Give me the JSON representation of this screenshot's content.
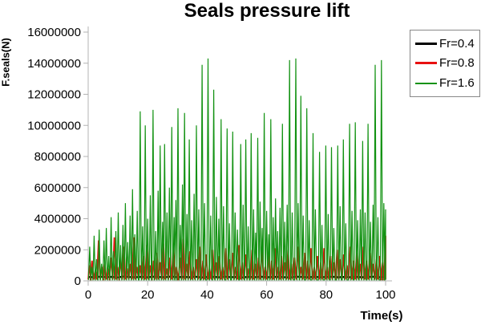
{
  "chart_data": {
    "type": "line",
    "title": "Seals pressure lift",
    "xlabel": "Time(s)",
    "ylabel": "F.seals(N)",
    "xlim": [
      0,
      100
    ],
    "ylim": [
      0,
      16000000
    ],
    "x_ticks": [
      0,
      20,
      40,
      60,
      80,
      100
    ],
    "y_ticks": [
      0,
      2000000,
      4000000,
      6000000,
      8000000,
      10000000,
      12000000,
      14000000,
      16000000
    ],
    "grid": false,
    "legend_position": "top-right",
    "axis_color": "#b3b3b3",
    "series": [
      {
        "name": "Fr=0.4",
        "color": "#000000",
        "kind": "flat-noise",
        "points": [
          [
            0,
            250000
          ],
          [
            2,
            230000
          ],
          [
            4,
            270000
          ],
          [
            6,
            240000
          ],
          [
            8,
            260000
          ],
          [
            10,
            220000
          ],
          [
            12,
            280000
          ],
          [
            14,
            250000
          ],
          [
            16,
            240000
          ],
          [
            18,
            260000
          ],
          [
            20,
            230000
          ],
          [
            22,
            270000
          ],
          [
            24,
            250000
          ],
          [
            26,
            240000
          ],
          [
            28,
            280000
          ],
          [
            30,
            230000
          ],
          [
            32,
            260000
          ],
          [
            34,
            240000
          ],
          [
            36,
            270000
          ],
          [
            38,
            220000
          ],
          [
            40,
            250000
          ],
          [
            42,
            260000
          ],
          [
            44,
            230000
          ],
          [
            46,
            270000
          ],
          [
            48,
            240000
          ],
          [
            50,
            250000
          ],
          [
            52,
            220000
          ],
          [
            54,
            260000
          ],
          [
            56,
            240000
          ],
          [
            58,
            270000
          ],
          [
            60,
            230000
          ],
          [
            62,
            250000
          ],
          [
            64,
            260000
          ],
          [
            66,
            240000
          ],
          [
            68,
            220000
          ],
          [
            70,
            270000
          ],
          [
            72,
            250000
          ],
          [
            74,
            230000
          ],
          [
            76,
            260000
          ],
          [
            78,
            240000
          ],
          [
            80,
            250000
          ],
          [
            82,
            270000
          ],
          [
            84,
            230000
          ],
          [
            86,
            250000
          ],
          [
            88,
            240000
          ],
          [
            90,
            260000
          ],
          [
            92,
            230000
          ],
          [
            94,
            250000
          ],
          [
            96,
            270000
          ],
          [
            98,
            240000
          ],
          [
            100,
            250000
          ]
        ]
      },
      {
        "name": "Fr=0.8",
        "color": "#e81010",
        "kind": "spikes",
        "baseline": 90000,
        "spike_halfwidth": 0.55,
        "peaks": [
          [
            0.4,
            1000000
          ],
          [
            1.3,
            1300000
          ],
          [
            2.4,
            700000
          ],
          [
            3.5,
            2600000
          ],
          [
            4.6,
            900000
          ],
          [
            5.6,
            1100000
          ],
          [
            6.7,
            800000
          ],
          [
            7.7,
            1500000
          ],
          [
            8.8,
            2800000
          ],
          [
            9.9,
            900000
          ],
          [
            10.9,
            1400000
          ],
          [
            12.0,
            2200000
          ],
          [
            13.1,
            800000
          ],
          [
            14.2,
            1100000
          ],
          [
            15.3,
            2800000
          ],
          [
            16.4,
            900000
          ],
          [
            17.5,
            1000000
          ],
          [
            18.6,
            1600000
          ],
          [
            19.7,
            2300000
          ],
          [
            20.8,
            1000000
          ],
          [
            22.0,
            1300000
          ],
          [
            23.1,
            1800000
          ],
          [
            24.2,
            1200000
          ],
          [
            25.3,
            2400000
          ],
          [
            26.4,
            800000
          ],
          [
            27.5,
            1500000
          ],
          [
            28.6,
            2100000
          ],
          [
            29.7,
            900000
          ],
          [
            30.9,
            1500000
          ],
          [
            32.0,
            2700000
          ],
          [
            33.1,
            1100000
          ],
          [
            34.2,
            1900000
          ],
          [
            35.3,
            900000
          ],
          [
            36.4,
            1400000
          ],
          [
            37.5,
            2200000
          ],
          [
            38.6,
            1300000
          ],
          [
            39.7,
            1700000
          ],
          [
            40.8,
            800000
          ],
          [
            41.9,
            2000000
          ],
          [
            43.0,
            1200000
          ],
          [
            44.1,
            1600000
          ],
          [
            45.2,
            900000
          ],
          [
            46.3,
            2100000
          ],
          [
            47.4,
            1400000
          ],
          [
            48.5,
            1800000
          ],
          [
            49.6,
            900000
          ],
          [
            50.7,
            2300000
          ],
          [
            51.8,
            1200000
          ],
          [
            52.9,
            1700000
          ],
          [
            54.0,
            800000
          ],
          [
            55.1,
            2000000
          ],
          [
            56.2,
            1100000
          ],
          [
            57.3,
            1500000
          ],
          [
            58.4,
            2200000
          ],
          [
            59.5,
            900000
          ],
          [
            60.6,
            1800000
          ],
          [
            61.7,
            1300000
          ],
          [
            62.8,
            2100000
          ],
          [
            63.9,
            900000
          ],
          [
            65.0,
            1600000
          ],
          [
            66.1,
            1200000
          ],
          [
            67.2,
            2000000
          ],
          [
            68.3,
            1100000
          ],
          [
            69.4,
            1500000
          ],
          [
            70.5,
            2200000
          ],
          [
            71.6,
            900000
          ],
          [
            72.7,
            1800000
          ],
          [
            73.8,
            1300000
          ],
          [
            74.9,
            2100000
          ],
          [
            76.0,
            900000
          ],
          [
            77.1,
            1600000
          ],
          [
            78.2,
            1200000
          ],
          [
            79.3,
            2100000
          ],
          [
            80.4,
            900000
          ],
          [
            81.5,
            1600000
          ],
          [
            82.6,
            1200000
          ],
          [
            83.7,
            2000000
          ],
          [
            84.8,
            1400000
          ],
          [
            85.9,
            1700000
          ],
          [
            87.0,
            1000000
          ],
          [
            88.1,
            2200000
          ],
          [
            89.2,
            1300000
          ],
          [
            90.3,
            1800000
          ],
          [
            91.4,
            1100000
          ],
          [
            92.5,
            2200000
          ],
          [
            93.6,
            1300000
          ],
          [
            94.7,
            1800000
          ],
          [
            95.8,
            1100000
          ],
          [
            96.9,
            1400000
          ],
          [
            98.0,
            1600000
          ],
          [
            99.0,
            1200000
          ],
          [
            100,
            2900000
          ]
        ]
      },
      {
        "name": "Fr=1.6",
        "color": "#129212",
        "kind": "spikes",
        "baseline": 60000,
        "spike_halfwidth": 0.38,
        "peaks": [
          [
            0.5,
            2200000
          ],
          [
            1.2,
            900000
          ],
          [
            2.0,
            2900000
          ],
          [
            2.8,
            1400000
          ],
          [
            3.7,
            3300000
          ],
          [
            4.5,
            1100000
          ],
          [
            5.3,
            2600000
          ],
          [
            6.1,
            3400000
          ],
          [
            6.9,
            1600000
          ],
          [
            7.7,
            4100000
          ],
          [
            8.5,
            1900000
          ],
          [
            9.3,
            3200000
          ],
          [
            10.1,
            4400000
          ],
          [
            10.9,
            2300000
          ],
          [
            11.7,
            3600000
          ],
          [
            12.5,
            5000000
          ],
          [
            13.3,
            2500000
          ],
          [
            14.1,
            4200000
          ],
          [
            14.9,
            5900000
          ],
          [
            15.7,
            3000000
          ],
          [
            16.5,
            4500000
          ],
          [
            17.5,
            10900000
          ],
          [
            18.3,
            3500000
          ],
          [
            19.2,
            10000000
          ],
          [
            20.0,
            4000000
          ],
          [
            20.9,
            5500000
          ],
          [
            21.8,
            11000000
          ],
          [
            22.7,
            3200000
          ],
          [
            23.5,
            5800000
          ],
          [
            24.2,
            8700000
          ],
          [
            25.0,
            3800000
          ],
          [
            25.7,
            8800000
          ],
          [
            26.5,
            4400000
          ],
          [
            27.3,
            6000000
          ],
          [
            28.1,
            9900000
          ],
          [
            28.9,
            4100000
          ],
          [
            29.5,
            5200000
          ],
          [
            30.2,
            11100000
          ],
          [
            31.0,
            3600000
          ],
          [
            31.7,
            6200000
          ],
          [
            32.4,
            10800000
          ],
          [
            33.2,
            4300000
          ],
          [
            34.0,
            9100000
          ],
          [
            34.8,
            3900000
          ],
          [
            35.6,
            5600000
          ],
          [
            36.4,
            10000000
          ],
          [
            37.2,
            4600000
          ],
          [
            38.3,
            13900000
          ],
          [
            39.1,
            5000000
          ],
          [
            40.3,
            14300000
          ],
          [
            41.2,
            4200000
          ],
          [
            42.2,
            12300000
          ],
          [
            43.1,
            5400000
          ],
          [
            43.9,
            4000000
          ],
          [
            44.7,
            10400000
          ],
          [
            45.5,
            4800000
          ],
          [
            46.7,
            9800000
          ],
          [
            47.5,
            3700000
          ],
          [
            48.6,
            9600000
          ],
          [
            49.4,
            4400000
          ],
          [
            50.2,
            3300000
          ],
          [
            51.3,
            8800000
          ],
          [
            52.1,
            4900000
          ],
          [
            53.0,
            9100000
          ],
          [
            53.8,
            3500000
          ],
          [
            54.8,
            9500000
          ],
          [
            55.6,
            4600000
          ],
          [
            56.3,
            3100000
          ],
          [
            57.0,
            9200000
          ],
          [
            57.8,
            5100000
          ],
          [
            58.5,
            3400000
          ],
          [
            59.2,
            10800000
          ],
          [
            60.0,
            4500000
          ],
          [
            60.7,
            3000000
          ],
          [
            61.4,
            10400000
          ],
          [
            62.2,
            4100000
          ],
          [
            63.0,
            5300000
          ],
          [
            63.7,
            3200000
          ],
          [
            64.5,
            4700000
          ],
          [
            65.3,
            10100000
          ],
          [
            66.1,
            3800000
          ],
          [
            66.9,
            4900000
          ],
          [
            67.7,
            14200000
          ],
          [
            68.6,
            4400000
          ],
          [
            69.8,
            14300000
          ],
          [
            70.6,
            5000000
          ],
          [
            71.5,
            11900000
          ],
          [
            72.3,
            4200000
          ],
          [
            73.5,
            11100000
          ],
          [
            74.3,
            3900000
          ],
          [
            75.6,
            9500000
          ],
          [
            76.4,
            4600000
          ],
          [
            77.8,
            8300000
          ],
          [
            78.6,
            3600000
          ],
          [
            79.9,
            8700000
          ],
          [
            80.7,
            4300000
          ],
          [
            81.8,
            8600000
          ],
          [
            82.6,
            3400000
          ],
          [
            83.9,
            8700000
          ],
          [
            84.7,
            4800000
          ],
          [
            85.8,
            9100000
          ],
          [
            86.6,
            3700000
          ],
          [
            87.9,
            10100000
          ],
          [
            88.7,
            4500000
          ],
          [
            89.8,
            10200000
          ],
          [
            90.6,
            3900000
          ],
          [
            91.5,
            4600000
          ],
          [
            92.3,
            9000000
          ],
          [
            93.1,
            4400000
          ],
          [
            94.1,
            10100000
          ],
          [
            94.9,
            3800000
          ],
          [
            95.8,
            4900000
          ],
          [
            96.5,
            13900000
          ],
          [
            97.4,
            4100000
          ],
          [
            98.6,
            14200000
          ],
          [
            99.4,
            5000000
          ],
          [
            100,
            4600000
          ]
        ]
      }
    ]
  }
}
